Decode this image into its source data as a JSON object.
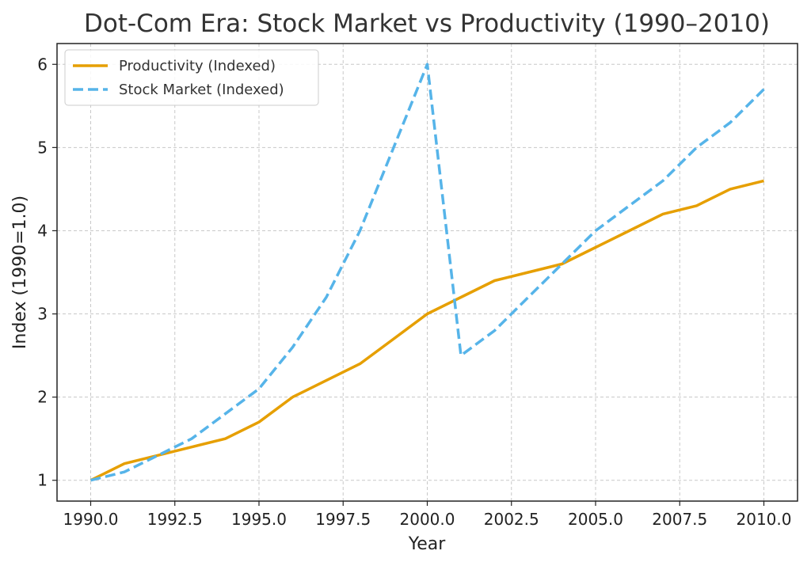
{
  "chart_data": {
    "type": "line",
    "title": "Dot-Com Era: Stock Market vs Productivity (1990–2010)",
    "xlabel": "Year",
    "ylabel": "Index (1990=1.0)",
    "xlim": [
      1989,
      2011
    ],
    "ylim": [
      0.75,
      6.25
    ],
    "x_ticks": [
      1990,
      1992.5,
      1995,
      1997.5,
      2000,
      2002.5,
      2005,
      2007.5,
      2010
    ],
    "x_tick_labels": [
      "1990.0",
      "1992.5",
      "1995.0",
      "1997.5",
      "2000.0",
      "2002.5",
      "2005.0",
      "2007.5",
      "2010.0"
    ],
    "y_ticks": [
      1,
      2,
      3,
      4,
      5,
      6
    ],
    "y_tick_labels": [
      "1",
      "2",
      "3",
      "4",
      "5",
      "6"
    ],
    "grid": true,
    "legend_position": "top-left",
    "x": [
      1990,
      1991,
      1992,
      1993,
      1994,
      1995,
      1996,
      1997,
      1998,
      1999,
      2000,
      2001,
      2002,
      2003,
      2004,
      2005,
      2006,
      2007,
      2008,
      2009,
      2010
    ],
    "series": [
      {
        "name": "Productivity (Indexed)",
        "color": "#E69F00",
        "style": "solid",
        "values": [
          1.0,
          1.2,
          1.3,
          1.4,
          1.5,
          1.7,
          2.0,
          2.2,
          2.4,
          2.7,
          3.0,
          3.2,
          3.4,
          3.5,
          3.6,
          3.8,
          4.0,
          4.2,
          4.3,
          4.5,
          4.6
        ]
      },
      {
        "name": "Stock Market (Indexed)",
        "color": "#56B4E9",
        "style": "dashed",
        "values": [
          1.0,
          1.1,
          1.3,
          1.5,
          1.8,
          2.1,
          2.6,
          3.2,
          4.0,
          5.0,
          6.0,
          2.5,
          2.8,
          3.2,
          3.6,
          4.0,
          4.3,
          4.6,
          5.0,
          5.3,
          5.7
        ]
      }
    ]
  }
}
